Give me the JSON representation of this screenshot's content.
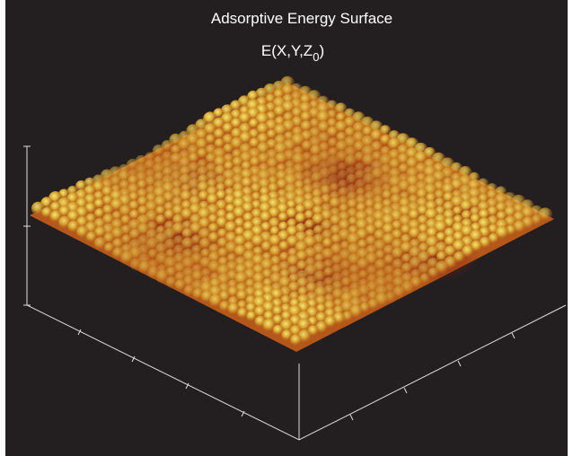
{
  "chart_data": {
    "type": "surface",
    "title": "Adsorptive Energy Surface",
    "subtitle": "E(X,Y,Z",
    "subtitle_subscript": "0",
    "subtitle_close": ")"
  }
}
